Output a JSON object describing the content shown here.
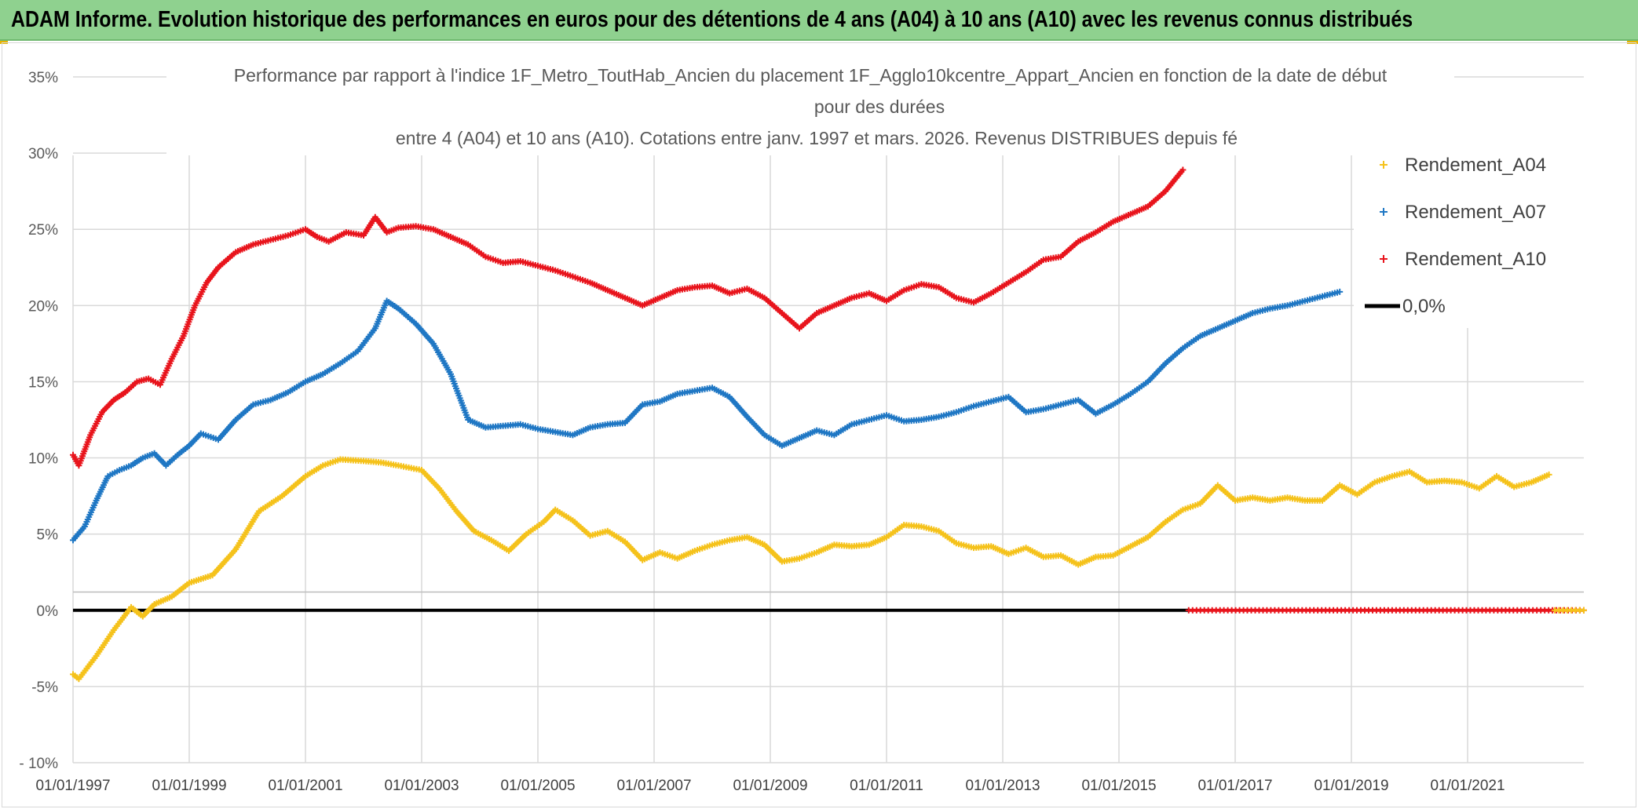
{
  "banner": {
    "title": "ADAM Informe. Evolution historique des performances en euros pour des détentions de 4 ans (A04) à 10 ans (A10) avec les revenus connus distribués"
  },
  "colors": {
    "banner_bg": "#8fd18f",
    "A04": "#f5c21b",
    "A07": "#1f77c4",
    "A10": "#e8141c",
    "zero": "#000000",
    "grid": "#d9d9d9"
  },
  "chart_data": {
    "type": "line",
    "title_lines": [
      "Performance  par rapport à l'indice 1F_Metro_ToutHab_Ancien   du placement 1F_Agglo10kcentre_Appart_Ancien  en fonction de la date de début",
      "pour des durées",
      "entre 4 (A04) et 10 ans (A10). Cotations entre janv. 1997 et mars. 2026. Revenus DISTRIBUES depuis fé"
    ],
    "x_range": [
      1997.0,
      2023.0
    ],
    "ylim": [
      -10,
      35
    ],
    "y_ticks": [
      -10,
      -5,
      0,
      5,
      10,
      15,
      20,
      25,
      30,
      35
    ],
    "y_tick_labels": [
      "- 10%",
      "-5%",
      "0%",
      "5%",
      "10%",
      "15%",
      "20%",
      "25%",
      "30%",
      "35%"
    ],
    "x_ticks": [
      1997,
      1999,
      2001,
      2003,
      2005,
      2007,
      2009,
      2011,
      2013,
      2015,
      2017,
      2019,
      2021
    ],
    "x_tick_labels": [
      "01/01/1997",
      "01/01/1999",
      "01/01/2001",
      "01/01/2003",
      "01/01/2005",
      "01/01/2007",
      "01/01/2009",
      "01/01/2011",
      "01/01/2013",
      "01/01/2015",
      "01/01/2017",
      "01/01/2019",
      "01/01/2021"
    ],
    "legend": {
      "position": "top-right",
      "items": [
        {
          "key": "A04",
          "label": "Rendement_A04",
          "marker": "+"
        },
        {
          "key": "A07",
          "label": "Rendement_A07",
          "marker": "+"
        },
        {
          "key": "A10",
          "label": "Rendement_A10",
          "marker": "+"
        },
        {
          "key": "zero",
          "label": "0,0%",
          "marker": "line"
        }
      ]
    },
    "zero_line": {
      "label": "0,0%",
      "value": 0
    },
    "series": [
      {
        "name": "Rendement_A04",
        "key": "A04",
        "x": [
          1997.0,
          1997.1,
          1997.4,
          1997.7,
          1998.0,
          1998.2,
          1998.4,
          1998.7,
          1999.0,
          1999.4,
          1999.8,
          2000.2,
          2000.6,
          2001.0,
          2001.3,
          2001.6,
          2002.0,
          2002.3,
          2002.6,
          2003.0,
          2003.3,
          2003.6,
          2003.9,
          2004.2,
          2004.5,
          2004.8,
          2005.1,
          2005.3,
          2005.6,
          2005.9,
          2006.2,
          2006.5,
          2006.8,
          2007.1,
          2007.4,
          2007.7,
          2008.0,
          2008.3,
          2008.6,
          2008.9,
          2009.2,
          2009.5,
          2009.8,
          2010.1,
          2010.4,
          2010.7,
          2011.0,
          2011.3,
          2011.6,
          2011.9,
          2012.2,
          2012.5,
          2012.8,
          2013.1,
          2013.4,
          2013.7,
          2014.0,
          2014.3,
          2014.6,
          2014.9,
          2015.2,
          2015.5,
          2015.8,
          2016.1,
          2016.4,
          2016.7,
          2017.0,
          2017.3,
          2017.6,
          2017.9,
          2018.2,
          2018.5,
          2018.8,
          2019.1,
          2019.4,
          2019.7,
          2020.0,
          2020.3,
          2020.6,
          2020.9,
          2021.2,
          2021.5,
          2021.8,
          2022.1,
          2022.4
        ],
        "values": [
          -4.2,
          -4.5,
          -3.0,
          -1.3,
          0.2,
          -0.4,
          0.4,
          0.9,
          1.8,
          2.3,
          4.0,
          6.5,
          7.5,
          8.8,
          9.5,
          9.9,
          9.8,
          9.7,
          9.5,
          9.2,
          8.0,
          6.5,
          5.2,
          4.6,
          3.9,
          5.0,
          5.8,
          6.6,
          5.9,
          4.9,
          5.2,
          4.5,
          3.3,
          3.8,
          3.4,
          3.9,
          4.3,
          4.6,
          4.8,
          4.3,
          3.2,
          3.4,
          3.8,
          4.3,
          4.2,
          4.3,
          4.8,
          5.6,
          5.5,
          5.2,
          4.4,
          4.1,
          4.2,
          3.7,
          4.1,
          3.5,
          3.6,
          3.0,
          3.5,
          3.6,
          4.2,
          4.8,
          5.8,
          6.6,
          7.0,
          8.2,
          7.2,
          7.4,
          7.2,
          7.4,
          7.2,
          7.2,
          8.2,
          7.6,
          8.4,
          8.8,
          9.1,
          8.4,
          8.5,
          8.4,
          8.0,
          8.8,
          8.1,
          8.4,
          8.9
        ]
      },
      {
        "name": "Rendement_A07",
        "key": "A07",
        "x": [
          1997.0,
          1997.2,
          1997.4,
          1997.6,
          1997.8,
          1998.0,
          1998.2,
          1998.4,
          1998.6,
          1998.8,
          1999.0,
          1999.2,
          1999.5,
          1999.8,
          2000.1,
          2000.4,
          2000.7,
          2001.0,
          2001.3,
          2001.6,
          2001.9,
          2002.2,
          2002.4,
          2002.6,
          2002.9,
          2003.2,
          2003.5,
          2003.8,
          2004.1,
          2004.4,
          2004.7,
          2005.0,
          2005.3,
          2005.6,
          2005.9,
          2006.2,
          2006.5,
          2006.8,
          2007.1,
          2007.4,
          2007.7,
          2008.0,
          2008.3,
          2008.6,
          2008.9,
          2009.2,
          2009.5,
          2009.8,
          2010.1,
          2010.4,
          2010.7,
          2011.0,
          2011.3,
          2011.6,
          2011.9,
          2012.2,
          2012.5,
          2012.8,
          2013.1,
          2013.4,
          2013.7,
          2014.0,
          2014.3,
          2014.6,
          2014.9,
          2015.2,
          2015.5,
          2015.8,
          2016.1,
          2016.4,
          2016.7,
          2017.0,
          2017.3,
          2017.6,
          2017.9,
          2018.2,
          2018.5,
          2018.8
        ],
        "values": [
          4.6,
          5.5,
          7.2,
          8.8,
          9.2,
          9.5,
          10.0,
          10.3,
          9.5,
          10.2,
          10.8,
          11.6,
          11.2,
          12.5,
          13.5,
          13.8,
          14.3,
          15.0,
          15.5,
          16.2,
          17.0,
          18.5,
          20.3,
          19.8,
          18.8,
          17.5,
          15.5,
          12.5,
          12.0,
          12.1,
          12.2,
          11.9,
          11.7,
          11.5,
          12.0,
          12.2,
          12.3,
          13.5,
          13.7,
          14.2,
          14.4,
          14.6,
          14.0,
          12.7,
          11.5,
          10.8,
          11.3,
          11.8,
          11.5,
          12.2,
          12.5,
          12.8,
          12.4,
          12.5,
          12.7,
          13.0,
          13.4,
          13.7,
          14.0,
          13.0,
          13.2,
          13.5,
          13.8,
          12.9,
          13.5,
          14.2,
          15.0,
          16.2,
          17.2,
          18.0,
          18.5,
          19.0,
          19.5,
          19.8,
          20.0,
          20.3,
          20.6,
          20.9
        ]
      },
      {
        "name": "Rendement_A10",
        "key": "A10",
        "x": [
          1997.0,
          1997.1,
          1997.3,
          1997.5,
          1997.7,
          1997.9,
          1998.1,
          1998.3,
          1998.5,
          1998.7,
          1998.9,
          1999.1,
          1999.3,
          1999.5,
          1999.8,
          2000.1,
          2000.4,
          2000.7,
          2001.0,
          2001.2,
          2001.4,
          2001.7,
          2002.0,
          2002.2,
          2002.4,
          2002.6,
          2002.9,
          2003.2,
          2003.5,
          2003.8,
          2004.1,
          2004.4,
          2004.7,
          2005.0,
          2005.3,
          2005.6,
          2005.9,
          2006.2,
          2006.5,
          2006.8,
          2007.1,
          2007.4,
          2007.7,
          2008.0,
          2008.3,
          2008.6,
          2008.9,
          2009.2,
          2009.5,
          2009.8,
          2010.1,
          2010.4,
          2010.7,
          2011.0,
          2011.3,
          2011.6,
          2011.9,
          2012.2,
          2012.5,
          2012.8,
          2013.1,
          2013.4,
          2013.7,
          2014.0,
          2014.3,
          2014.6,
          2014.9,
          2015.2,
          2015.5,
          2015.8,
          2016.1
        ],
        "values": [
          10.2,
          9.5,
          11.5,
          13.0,
          13.8,
          14.3,
          15.0,
          15.2,
          14.8,
          16.5,
          18.0,
          20.0,
          21.5,
          22.5,
          23.5,
          24.0,
          24.3,
          24.6,
          25.0,
          24.5,
          24.2,
          24.8,
          24.6,
          25.8,
          24.8,
          25.1,
          25.2,
          25.0,
          24.5,
          24.0,
          23.2,
          22.8,
          22.9,
          22.6,
          22.3,
          21.9,
          21.5,
          21.0,
          20.5,
          20.0,
          20.5,
          21.0,
          21.2,
          21.3,
          20.8,
          21.1,
          20.5,
          19.5,
          18.5,
          19.5,
          20.0,
          20.5,
          20.8,
          20.3,
          21.0,
          21.4,
          21.2,
          20.5,
          20.2,
          20.8,
          21.5,
          22.2,
          23.0,
          23.2,
          24.2,
          24.8,
          25.5,
          26.0,
          26.5,
          27.5,
          28.9
        ]
      },
      {
        "name": "Rendement_A10 (0%)",
        "key": "A10",
        "x": [
          2016.2,
          2023.0
        ],
        "values": [
          0,
          0
        ],
        "dense": true
      },
      {
        "name": "Rendement_A04 (0%)",
        "key": "A04",
        "x": [
          2022.5,
          2023.0
        ],
        "values": [
          0,
          0
        ],
        "dense": true
      }
    ]
  }
}
